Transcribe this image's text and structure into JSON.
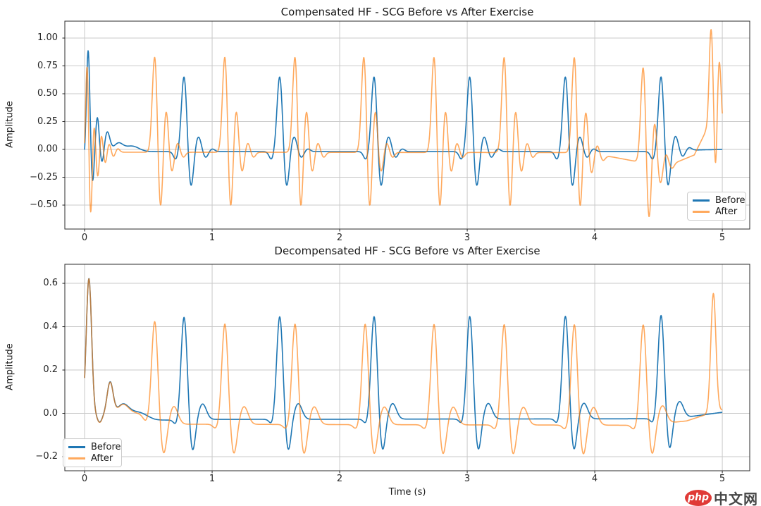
{
  "watermark": {
    "logo_text": "php",
    "site_text": "中文网",
    "badge_color": "#e03a36",
    "site_color": "#474747"
  },
  "chart_data": [
    {
      "type": "line",
      "title": "Compensated HF - SCG Before vs After Exercise",
      "xlabel": "",
      "ylabel": "Amplitude",
      "xlim": [
        -0.155,
        5.215
      ],
      "ylim": [
        -0.715,
        1.152
      ],
      "grid": true,
      "xtick_values": [
        0,
        1,
        2,
        3,
        4,
        5
      ],
      "xtick_labels": [
        "0",
        "1",
        "2",
        "3",
        "4",
        "5"
      ],
      "ytick_values": [
        1.0,
        0.75,
        0.5,
        0.25,
        0.0,
        -0.25,
        -0.5
      ],
      "ytick_labels": [
        "1.00",
        "0.75",
        "0.50",
        "0.25",
        "0.00",
        "−0.25",
        "−0.50"
      ],
      "legend": {
        "location": "lower right",
        "labels": [
          "Before",
          "After"
        ]
      },
      "signal_duration_s": 5.0,
      "series": [
        {
          "name": "Before",
          "color": "#1f77b4",
          "alpha": 1.0,
          "beat_times": [
            0.78,
            1.53,
            2.27,
            3.02,
            3.77,
            4.52
          ],
          "beat_peak": 0.65,
          "beat_trough": -0.31,
          "initial_peak": 0.85,
          "baseline": [
            [
              -0.16,
              0
            ],
            [
              0.3,
              -0.02
            ],
            [
              4.5,
              -0.02
            ],
            [
              4.8,
              -0.005
            ],
            [
              5,
              0
            ]
          ],
          "init_components": [
            [
              -0.12,
              -0.01,
              0.012
            ],
            [
              0.9,
              0.028,
              0.013
            ],
            [
              -0.3,
              0.062,
              0.012
            ],
            [
              0.3,
              0.1,
              0.013
            ],
            [
              -0.12,
              0.138,
              0.013
            ],
            [
              0.17,
              0.178,
              0.02
            ],
            [
              0.07,
              0.265,
              0.035
            ],
            [
              0.05,
              0.37,
              0.055
            ]
          ],
          "beat_components": [
            [
              -0.07,
              -0.065,
              0.018
            ],
            [
              0.68,
              0,
              0.021
            ],
            [
              -0.33,
              0.053,
              0.02
            ],
            [
              0.135,
              0.112,
              0.022
            ],
            [
              -0.055,
              0.168,
              0.02
            ],
            [
              0.025,
              0.22,
              0.02
            ]
          ],
          "extra_components": []
        },
        {
          "name": "After",
          "color": "#ff7f0e",
          "alpha": 0.67,
          "beat_times": [
            0.55,
            1.1,
            1.65,
            2.19,
            2.74,
            3.29,
            3.84,
            4.38
          ],
          "beat_peak": 0.82,
          "beat_trough": -0.52,
          "final_peak": 1.06,
          "final_peak_time": 4.93,
          "baseline": [
            [
              -0.16,
              0
            ],
            [
              0.3,
              -0.025
            ],
            [
              3.9,
              -0.028
            ],
            [
              4.15,
              -0.07
            ],
            [
              4.45,
              -0.135
            ],
            [
              4.62,
              -0.125
            ],
            [
              4.78,
              -0.05
            ],
            [
              4.87,
              0.16
            ],
            [
              4.91,
              0.16
            ],
            [
              5,
              0.18
            ]
          ],
          "init_components": [
            [
              -0.1,
              -0.005,
              0.01
            ],
            [
              0.8,
              0.02,
              0.011
            ],
            [
              -0.6,
              0.047,
              0.012
            ],
            [
              0.26,
              0.074,
              0.011
            ],
            [
              -0.24,
              0.103,
              0.012
            ],
            [
              0.15,
              0.132,
              0.012
            ],
            [
              -0.11,
              0.162,
              0.012
            ],
            [
              0.07,
              0.193,
              0.013
            ],
            [
              -0.045,
              0.226,
              0.014
            ],
            [
              0.03,
              0.26,
              0.015
            ]
          ],
          "beat_components": [
            [
              0.87,
              0,
              0.019
            ],
            [
              -0.54,
              0.044,
              0.017
            ],
            [
              0.38,
              0.089,
              0.017
            ],
            [
              -0.18,
              0.134,
              0.017
            ],
            [
              0.085,
              0.179,
              0.017
            ],
            [
              -0.045,
              0.224,
              0.017
            ]
          ],
          "extra_components": [
            [
              0.92,
              4.912,
              0.015
            ],
            [
              -0.42,
              4.947,
              0.011
            ],
            [
              0.62,
              4.976,
              0.014
            ]
          ]
        }
      ]
    },
    {
      "type": "line",
      "title": "Decompensated HF - SCG Before vs After Exercise",
      "xlabel": "Time (s)",
      "ylabel": "Amplitude",
      "xlim": [
        -0.155,
        5.215
      ],
      "ylim": [
        -0.265,
        0.688
      ],
      "grid": true,
      "xtick_values": [
        0,
        1,
        2,
        3,
        4,
        5
      ],
      "xtick_labels": [
        "0",
        "1",
        "2",
        "3",
        "4",
        "5"
      ],
      "ytick_values": [
        0.6,
        0.4,
        0.2,
        0.0,
        -0.2
      ],
      "ytick_labels": [
        "0.6",
        "0.4",
        "0.2",
        "0.0",
        "−0.2"
      ],
      "legend": {
        "location": "lower left",
        "labels": [
          "Before",
          "After"
        ]
      },
      "signal_duration_s": 5.0,
      "series": [
        {
          "name": "Before",
          "color": "#1f77b4",
          "alpha": 1.0,
          "beat_times": [
            0.78,
            1.53,
            2.27,
            3.02,
            3.77,
            4.52
          ],
          "beat_peak": 0.44,
          "beat_trough": -0.17,
          "initial_peak": 0.62,
          "baseline": [
            [
              -0.16,
              0
            ],
            [
              0.3,
              -0.018
            ],
            [
              0.55,
              -0.032
            ],
            [
              1,
              -0.028
            ],
            [
              4.4,
              -0.025
            ],
            [
              4.75,
              -0.015
            ],
            [
              5,
              0.005
            ]
          ],
          "init_components": [
            [
              0.63,
              0.034,
              0.021
            ],
            [
              -0.03,
              0.118,
              0.018
            ],
            [
              0.155,
              0.2,
              0.024
            ],
            [
              0.055,
              0.3,
              0.045
            ],
            [
              0.03,
              0.42,
              0.07
            ]
          ],
          "beat_components": [
            [
              -0.025,
              -0.06,
              0.02
            ],
            [
              0.475,
              0,
              0.024
            ],
            [
              -0.15,
              0.066,
              0.022
            ],
            [
              0.072,
              0.145,
              0.03
            ]
          ],
          "extra_components": []
        },
        {
          "name": "After",
          "color": "#ff7f0e",
          "alpha": 0.67,
          "beat_times": [
            0.55,
            1.1,
            1.65,
            2.2,
            2.74,
            3.29,
            3.84,
            4.38
          ],
          "beat_peak": 0.41,
          "beat_trough": -0.19,
          "final_peak": 0.54,
          "final_peak_time": 4.93,
          "baseline": [
            [
              -0.16,
              0
            ],
            [
              0.3,
              -0.02
            ],
            [
              0.6,
              -0.05
            ],
            [
              4.4,
              -0.055
            ],
            [
              4.72,
              -0.035
            ],
            [
              4.85,
              -0.01
            ],
            [
              5,
              0.015
            ]
          ],
          "init_components": [
            [
              0.63,
              0.034,
              0.021
            ],
            [
              -0.03,
              0.118,
              0.018
            ],
            [
              0.155,
              0.2,
              0.024
            ],
            [
              0.055,
              0.3,
              0.045
            ],
            [
              0.03,
              0.42,
              0.07
            ]
          ],
          "beat_components": [
            [
              -0.02,
              -0.07,
              0.022
            ],
            [
              0.465,
              0,
              0.024
            ],
            [
              -0.142,
              0.07,
              0.024
            ],
            [
              0.082,
              0.15,
              0.032
            ]
          ],
          "extra_components": [
            [
              0.55,
              4.93,
              0.02
            ]
          ]
        }
      ]
    }
  ]
}
